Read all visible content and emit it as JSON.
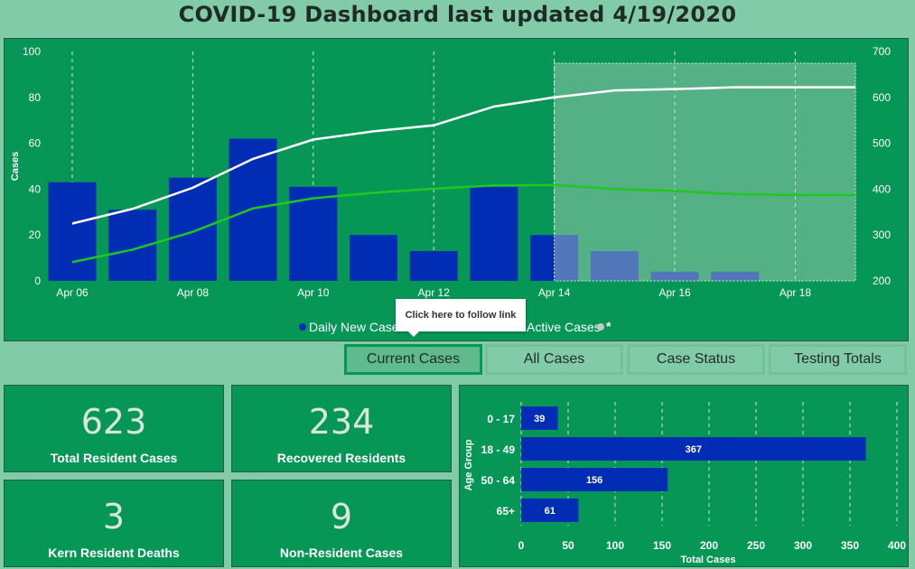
{
  "title": "COVID-19 Dashboard last updated 4/19/2020",
  "colors": {
    "panel": "#069655",
    "bar": "#002db3",
    "bar_faded": "#536dbf",
    "total_line": "#ffffff",
    "active_line": "#1ec81e",
    "background": "#82cba8"
  },
  "tooltip": "Click here to follow link",
  "chart_data": [
    {
      "type": "bar+line",
      "ylabel": "Cases",
      "ylim": [
        0,
        100
      ],
      "y2lim": [
        200,
        700
      ],
      "yticks": [
        "0",
        "20",
        "40",
        "60",
        "80",
        "100"
      ],
      "y2ticks": [
        "200",
        "300",
        "400",
        "500",
        "600",
        "700"
      ],
      "xtick_labels": [
        "Apr 06",
        "Apr 08",
        "Apr 10",
        "Apr 12",
        "Apr 14",
        "Apr 16",
        "Apr 18"
      ],
      "x": [
        "Apr 06",
        "Apr 07",
        "Apr 08",
        "Apr 09",
        "Apr 10",
        "Apr 11",
        "Apr 12",
        "Apr 13",
        "Apr 14",
        "Apr 15",
        "Apr 16",
        "Apr 17",
        "Apr 18",
        "Apr 19"
      ],
      "highlight_from": "Apr 14",
      "series": [
        {
          "name": "Daily New Cases",
          "axis": "left",
          "kind": "bar",
          "values": [
            43,
            31,
            45,
            62,
            41,
            20,
            13,
            41,
            20,
            13,
            4,
            4,
            0,
            0
          ]
        },
        {
          "name": "Total Cases",
          "axis": "right",
          "kind": "line",
          "values": [
            325,
            357,
            403,
            466,
            508,
            526,
            539,
            580,
            600,
            615,
            618,
            622,
            622,
            622
          ]
        },
        {
          "name": "Active Cases",
          "axis": "right",
          "kind": "line",
          "values": [
            241,
            268,
            307,
            358,
            380,
            392,
            401,
            408,
            409,
            400,
            396,
            389,
            387,
            387
          ]
        }
      ],
      "legend": {
        "items": [
          "Daily New Cases",
          "Active Cases",
          "*"
        ],
        "placement": "bottom"
      }
    },
    {
      "type": "bar",
      "orientation": "horizontal",
      "categories": [
        "0 - 17",
        "18 - 49",
        "50 - 64",
        "65+"
      ],
      "values": [
        39,
        367,
        156,
        61
      ],
      "xlabel": "Total Cases",
      "ylabel": "Age Group",
      "xlim": [
        0,
        400
      ],
      "xticks": [
        "0",
        "50",
        "100",
        "150",
        "200",
        "250",
        "300",
        "350",
        "400"
      ]
    }
  ],
  "buttons": [
    "Current Cases",
    "All Cases",
    "Case Status",
    "Testing Totals"
  ],
  "cards": [
    {
      "value": "623",
      "label": "Total Resident Cases"
    },
    {
      "value": "234",
      "label": "Recovered Residents"
    },
    {
      "value": "3",
      "label": "Kern Resident Deaths"
    },
    {
      "value": "9",
      "label": "Non-Resident Cases"
    }
  ]
}
